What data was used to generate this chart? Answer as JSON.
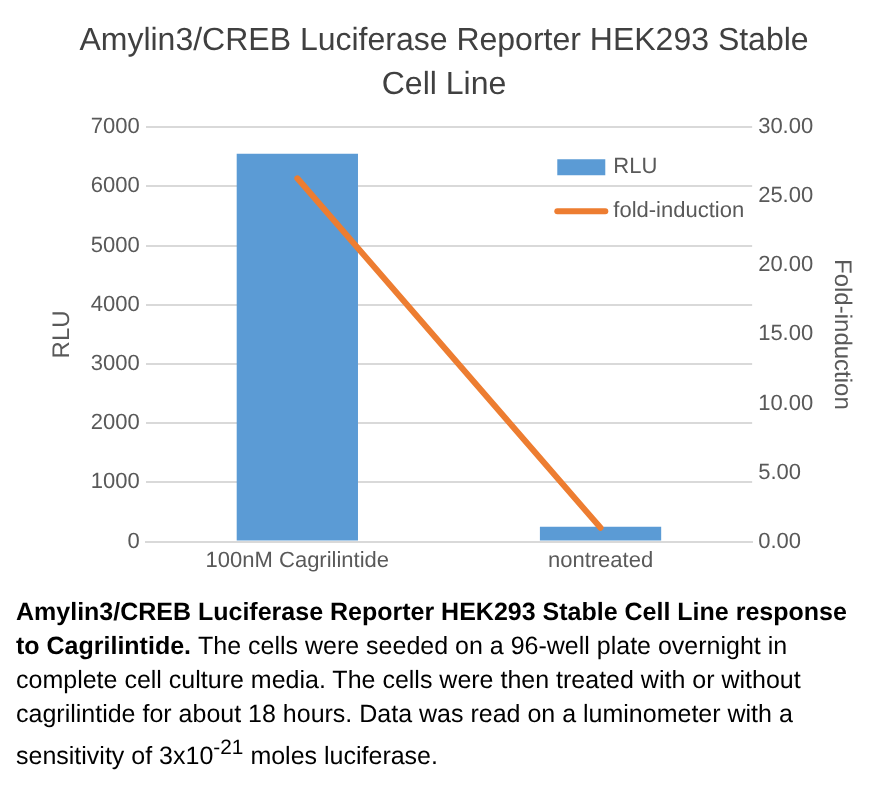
{
  "chart_data": {
    "type": "bar",
    "title": "Amylin3/CREB Luciferase Reporter HEK293 Stable Cell Line",
    "ylabel": "RLU",
    "y2label": "Fold-induction",
    "categories": [
      "100nM Cagrilintide",
      "nontreated"
    ],
    "series": [
      {
        "name": "RLU",
        "color": "#5b9bd5",
        "values": [
          6550,
          250
        ]
      },
      {
        "name": "fold-induction",
        "type": "line",
        "axis": "y2",
        "color": "#ed7d31",
        "values": [
          26.3,
          1.0
        ]
      }
    ],
    "ylim": [
      0,
      7000
    ],
    "yticks": [
      0,
      1000,
      2000,
      3000,
      4000,
      5000,
      6000,
      7000
    ],
    "y2lim": [
      0,
      30
    ],
    "y2ticks": [
      {
        "value": 0,
        "label": "0.00"
      },
      {
        "value": 5,
        "label": "5.00"
      },
      {
        "value": 10,
        "label": "10.00"
      },
      {
        "value": 15,
        "label": "15.00"
      },
      {
        "value": 20,
        "label": "20.00"
      },
      {
        "value": 25,
        "label": "25.00"
      },
      {
        "value": 30,
        "label": "30.00"
      }
    ],
    "grid": "y",
    "legend": "top right",
    "marker": "none",
    "annotations": [
      "Amylin3/CREB Luciferase Reporter HEK293 Stable Cell Line response to Cagrilintide.",
      "The cells were seeded on a 96-well plate overnight in complete cell culture media. The cells were then treated with or without cagrilintide for about 18 hours. Data was read on a luminometer with a sensitivity of 3x10$^{-21}$ moles luciferase."
    ]
  }
}
